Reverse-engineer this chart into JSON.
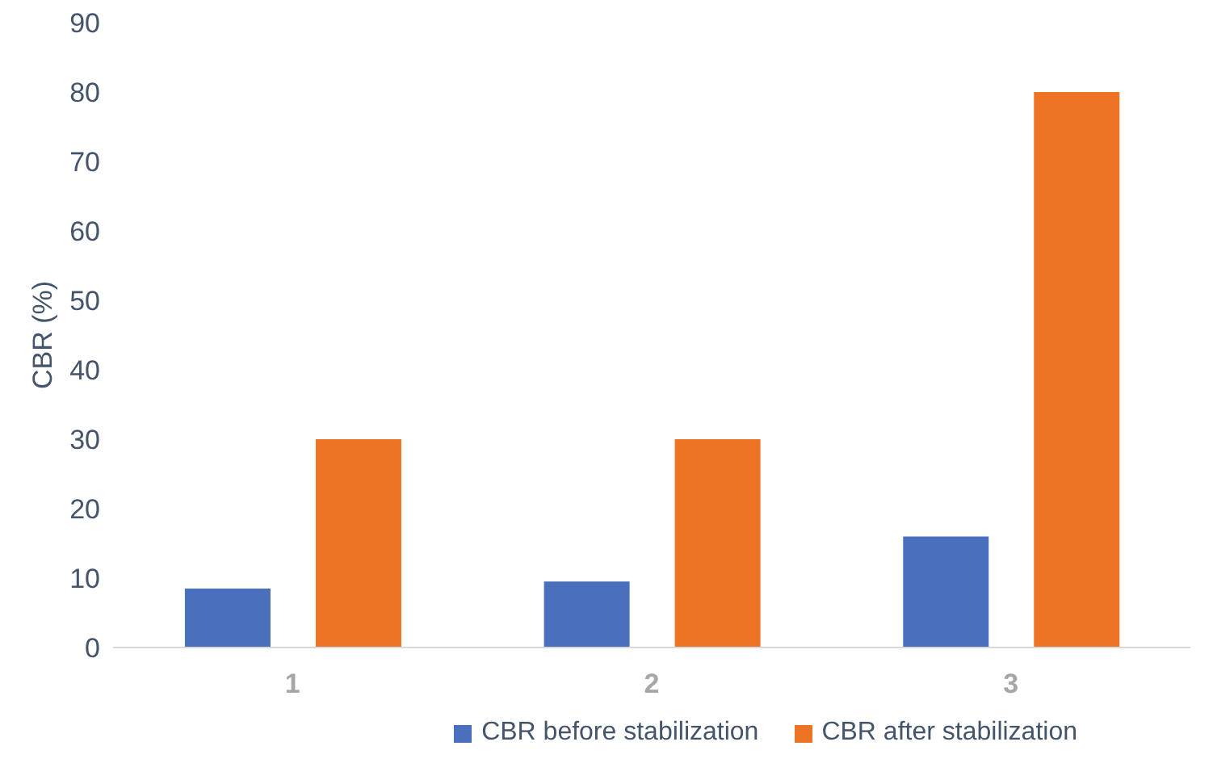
{
  "chart_data": {
    "type": "bar",
    "ylabel": "CBR (%)",
    "categories": [
      "1",
      "2",
      "3"
    ],
    "series": [
      {
        "name": "CBR before stabilization",
        "color": "#4a70bd",
        "values": [
          8.5,
          9.5,
          16
        ]
      },
      {
        "name": "CBR after stabilization",
        "color": "#ed7325",
        "values": [
          30,
          30,
          80
        ]
      }
    ],
    "ylim": [
      0,
      90
    ],
    "yticks": [
      0,
      10,
      20,
      30,
      40,
      50,
      60,
      70,
      80,
      90
    ],
    "grid": false,
    "legend": "bottom"
  }
}
